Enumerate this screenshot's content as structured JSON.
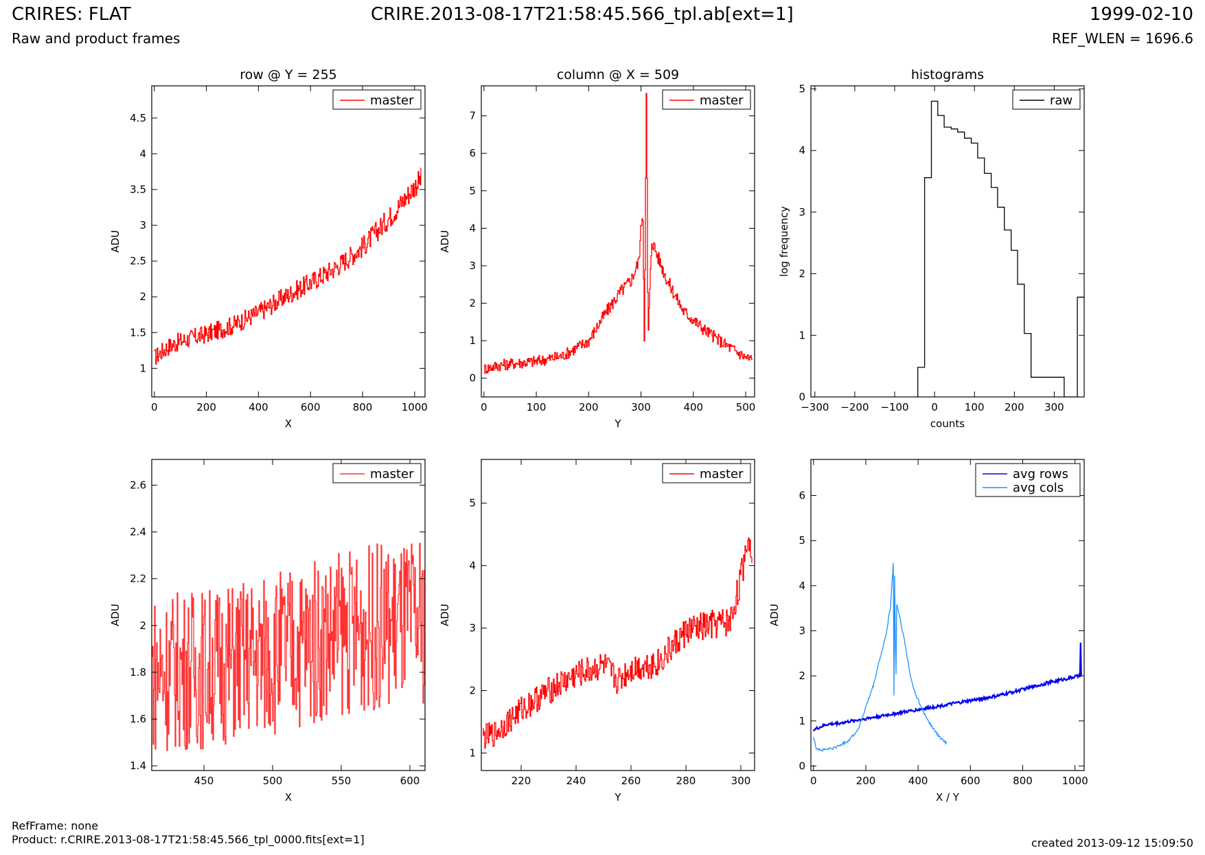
{
  "header": {
    "title": "CRIRES: FLAT",
    "subtitle": "Raw and product frames",
    "file": "CRIRE.2013-08-17T21:58:45.566_tpl.ab[ext=1]",
    "date": "1999-02-10",
    "ref_wlen": "REF_WLEN = 1696.6"
  },
  "footer": {
    "ref_frame": "RefFrame: none",
    "product": "Product: r.CRIRE.2013-08-17T21:58:45.566_tpl_0000.fits[ext=1]",
    "created": "created 2013-09-12 15:09:50"
  },
  "colors": {
    "red": "#ff0000",
    "light_red": "#ff3333",
    "black": "#000000",
    "blue": "#0000ee",
    "light_blue": "#1e90ff"
  },
  "chart_data": [
    {
      "id": "row",
      "type": "line",
      "title": "row @ Y = 255",
      "xlabel": "X",
      "ylabel": "ADU",
      "xlim": [
        -10,
        1040
      ],
      "ylim": [
        0.6,
        4.95
      ],
      "xticks": [
        0,
        200,
        400,
        600,
        800,
        1000
      ],
      "yticks": [
        1.0,
        1.5,
        2.0,
        2.5,
        3.0,
        3.5,
        4.0,
        4.5
      ],
      "legend": "top-right",
      "series": [
        {
          "name": "master",
          "color": "#ff0000",
          "x": [
            0,
            50,
            100,
            200,
            300,
            400,
            500,
            600,
            700,
            800,
            850,
            900,
            950,
            1000,
            1024
          ],
          "y": [
            1.15,
            1.3,
            1.38,
            1.48,
            1.6,
            1.78,
            2.0,
            2.2,
            2.42,
            2.7,
            2.9,
            3.1,
            3.32,
            3.55,
            3.65
          ],
          "noise": 0.18,
          "step": true
        }
      ]
    },
    {
      "id": "column",
      "type": "line",
      "title": "column @ X = 509",
      "xlabel": "Y",
      "ylabel": "ADU",
      "xlim": [
        -5,
        517
      ],
      "ylim": [
        -0.5,
        7.8
      ],
      "xticks": [
        0,
        100,
        200,
        300,
        400,
        500
      ],
      "yticks": [
        0,
        1,
        2,
        3,
        4,
        5,
        6,
        7
      ],
      "legend": "top-right",
      "series": [
        {
          "name": "master",
          "color": "#ff0000",
          "x": [
            0,
            30,
            60,
            100,
            150,
            200,
            230,
            260,
            280,
            295,
            303,
            306,
            310,
            313,
            320,
            330,
            350,
            380,
            420,
            460,
            500,
            512
          ],
          "y": [
            0.25,
            0.35,
            0.4,
            0.45,
            0.6,
            1.0,
            1.7,
            2.3,
            2.6,
            3.1,
            4.6,
            1.0,
            7.8,
            1.0,
            3.7,
            3.3,
            2.6,
            1.8,
            1.3,
            0.9,
            0.55,
            0.5
          ],
          "noise": 0.25,
          "step": true
        }
      ]
    },
    {
      "id": "hist",
      "type": "line",
      "title": "histograms",
      "xlabel": "counts",
      "ylabel": "log frequency",
      "xlim": [
        -310,
        375
      ],
      "ylim": [
        0,
        5.05
      ],
      "xticks": [
        -300,
        -200,
        -100,
        0,
        100,
        200,
        300
      ],
      "yticks": [
        0,
        1,
        2,
        3,
        4,
        5
      ],
      "legend": "top-right",
      "series": [
        {
          "name": "raw",
          "color": "#000000",
          "x": [
            -42,
            -42,
            -25,
            -25,
            -8,
            -8,
            8,
            8,
            24,
            24,
            42,
            42,
            58,
            58,
            75,
            75,
            92,
            92,
            108,
            108,
            125,
            125,
            142,
            142,
            158,
            158,
            175,
            175,
            192,
            192,
            208,
            208,
            225,
            225,
            242,
            242,
            258,
            258,
            325,
            325,
            358,
            358,
            375
          ],
          "y": [
            0,
            0.48,
            0.48,
            3.56,
            3.56,
            4.8,
            4.8,
            4.57,
            4.57,
            4.38,
            4.38,
            4.35,
            4.35,
            4.3,
            4.3,
            4.2,
            4.2,
            4.12,
            4.12,
            3.88,
            3.88,
            3.63,
            3.63,
            3.4,
            3.4,
            3.08,
            3.08,
            2.71,
            2.71,
            2.38,
            2.38,
            1.83,
            1.83,
            1.03,
            1.03,
            0.32,
            0.32,
            0.32,
            0.32,
            0,
            0,
            1.62,
            1.62
          ],
          "step": false
        }
      ]
    },
    {
      "id": "row-zoom",
      "type": "line",
      "title": "",
      "xlabel": "X",
      "ylabel": "ADU",
      "xlim": [
        412,
        611
      ],
      "ylim": [
        1.38,
        2.71
      ],
      "xticks": [
        450,
        500,
        550,
        600
      ],
      "yticks": [
        1.4,
        1.6,
        1.8,
        2.0,
        2.2,
        2.4,
        2.6
      ],
      "legend": "top-right",
      "series": [
        {
          "name": "master",
          "color": "#ff3333",
          "x": [
            412,
            450,
            500,
            550,
            611
          ],
          "y": [
            1.8,
            1.82,
            1.88,
            1.97,
            2.02
          ],
          "noise": 0.4,
          "step": true
        }
      ]
    },
    {
      "id": "column-zoom",
      "type": "line",
      "title": "",
      "xlabel": "Y",
      "ylabel": "ADU",
      "xlim": [
        205.5,
        305
      ],
      "ylim": [
        0.72,
        5.7
      ],
      "xticks": [
        220,
        240,
        260,
        280,
        300
      ],
      "yticks": [
        1,
        2,
        3,
        4,
        5
      ],
      "legend": "top-right",
      "series": [
        {
          "name": "master",
          "color": "#ff0000",
          "x": [
            206,
            210,
            220,
            230,
            240,
            250,
            255,
            260,
            270,
            280,
            290,
            296,
            300,
            302,
            304
          ],
          "y": [
            1.25,
            1.3,
            1.7,
            2.0,
            2.25,
            2.4,
            2.15,
            2.35,
            2.45,
            2.95,
            3.05,
            3.1,
            3.8,
            4.4,
            4.3
          ],
          "noise": 0.3,
          "step": true
        }
      ]
    },
    {
      "id": "averages",
      "type": "line",
      "title": "",
      "xlabel": "X / Y",
      "ylabel": "ADU",
      "xlim": [
        -10,
        1035
      ],
      "ylim": [
        -0.1,
        6.8
      ],
      "xticks": [
        0,
        200,
        400,
        600,
        800,
        1000
      ],
      "yticks": [
        0,
        1,
        2,
        3,
        4,
        5,
        6
      ],
      "legend": "top-right",
      "series": [
        {
          "name": "avg rows",
          "color": "#0000ee",
          "x": [
            0,
            50,
            100,
            200,
            300,
            400,
            500,
            600,
            700,
            800,
            900,
            1000,
            1020,
            1022,
            1024
          ],
          "y": [
            0.8,
            0.92,
            0.95,
            1.05,
            1.15,
            1.25,
            1.35,
            1.45,
            1.55,
            1.7,
            1.85,
            1.98,
            2.0,
            3.05,
            2.0
          ],
          "noise": 0.05,
          "step": false
        },
        {
          "name": "avg cols",
          "color": "#1e90ff",
          "x": [
            0,
            10,
            30,
            80,
            130,
            170,
            200,
            230,
            250,
            265,
            280,
            295,
            305,
            308,
            311,
            314,
            318,
            330,
            350,
            370,
            390,
            420,
            450,
            480,
            510
          ],
          "y": [
            0.65,
            0.4,
            0.35,
            0.4,
            0.55,
            0.8,
            1.3,
            1.8,
            2.3,
            2.6,
            3.0,
            3.55,
            4.5,
            1.1,
            5.35,
            1.1,
            3.6,
            3.3,
            2.7,
            2.0,
            1.6,
            1.2,
            0.9,
            0.65,
            0.5
          ],
          "noise": 0.05,
          "step": false
        }
      ]
    }
  ]
}
